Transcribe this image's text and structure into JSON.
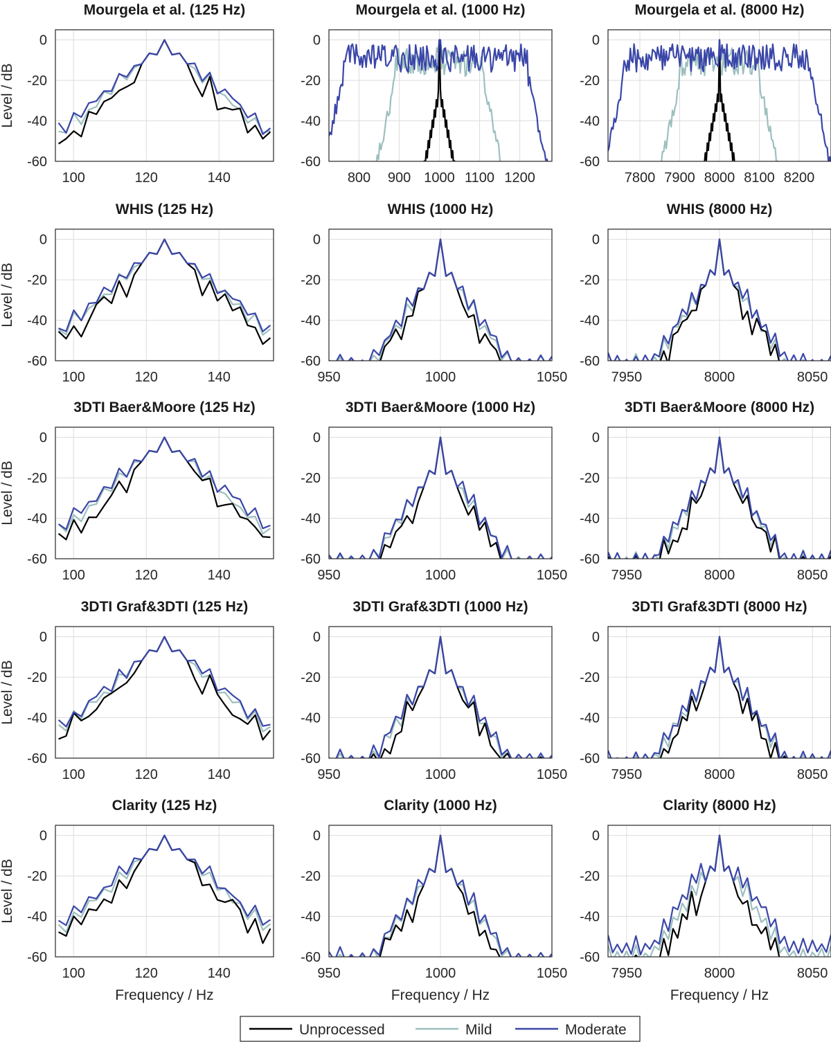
{
  "colors": {
    "unprocessed": "#000000",
    "mild": "#9dbfbf",
    "moderate": "#3a46a8"
  },
  "legend": [
    {
      "key": "unprocessed",
      "label": "Unprocessed"
    },
    {
      "key": "mild",
      "label": "Mild"
    },
    {
      "key": "moderate",
      "label": "Moderate"
    }
  ],
  "chart_data": {
    "type": "line",
    "grid": true,
    "legend_placement": "bottom-center",
    "ylabel": "Level / dB",
    "xlabel": "Frequency / Hz",
    "ylim": [
      -60,
      5
    ],
    "yticks": [
      0,
      -20,
      -40,
      -60
    ],
    "row_titles": [
      "Mourgela et al.",
      "WHIS",
      "3DTI Baer&Moore",
      "3DTI Graf&3DTI",
      "Clarity"
    ],
    "columns": [
      {
        "freq_label": "(125 Hz)",
        "xlim": [
          95,
          155
        ],
        "xticks": [
          100,
          120,
          140
        ]
      },
      {
        "freq_label": "(1000 Hz)",
        "xlim": [
          950,
          1050
        ],
        "xticks": [
          950,
          1000,
          1050
        ]
      },
      {
        "freq_label": "(8000 Hz)",
        "xlim": [
          7940,
          8060
        ],
        "xticks": [
          7950,
          8000,
          8050
        ]
      }
    ],
    "row1_overrides": [
      {
        "col": 1,
        "xlim": [
          725,
          1280
        ],
        "xticks": [
          800,
          900,
          1000,
          1100,
          1200
        ]
      },
      {
        "col": 2,
        "xlim": [
          7720,
          8280
        ],
        "xticks": [
          7800,
          7900,
          8000,
          8100,
          8200
        ]
      }
    ],
    "series_names": [
      "Unprocessed",
      "Mild",
      "Moderate"
    ],
    "peak_db": 0,
    "approx_envelope_db": {
      "125Hz": {
        "at_offset_10Hz": -16,
        "at_offset_20Hz": -28,
        "at_offset_30Hz": -40
      },
      "1000Hz": {
        "at_offset_10Hz": -25,
        "at_offset_20Hz": -35,
        "at_offset_40Hz": -50,
        "at_offset_50Hz": -58
      },
      "8000Hz": {
        "at_offset_10Hz": -24,
        "at_offset_20Hz": -30,
        "at_offset_40Hz": -45,
        "at_offset_60Hz": -58
      }
    },
    "mourgela_noise_band_hz": {
      "1000Hz": {
        "mild": [
          890,
          1110
        ],
        "moderate": [
          760,
          1220
        ]
      },
      "8000Hz": {
        "mild": [
          7900,
          8100
        ],
        "moderate": [
          7760,
          8230
        ]
      }
    }
  }
}
